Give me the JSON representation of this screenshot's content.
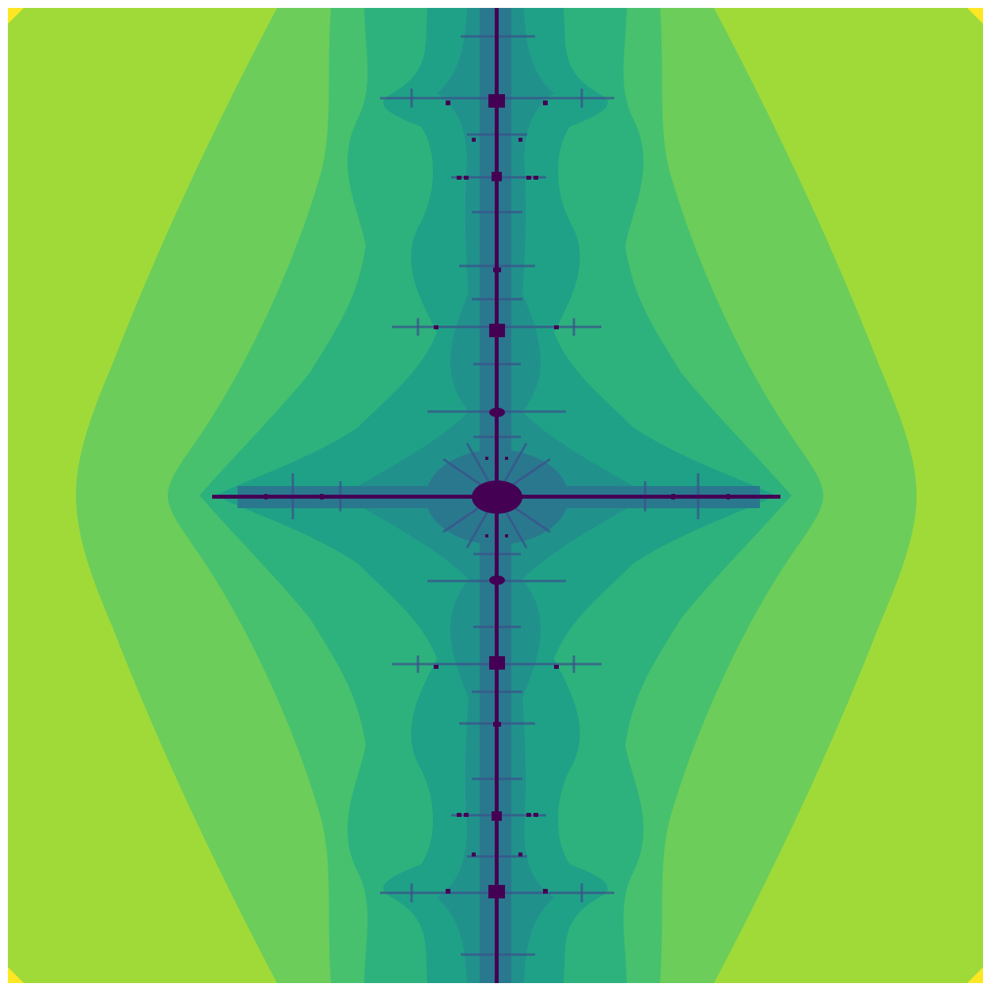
{
  "image": {
    "subject": "fractal-escape-time-render",
    "colormap": "viridis",
    "palette": {
      "outer": "#a0da39",
      "corner": "#fde725",
      "band_1": "#6ccd5a",
      "band_2": "#47c16e",
      "band_3": "#2db27d",
      "band_4": "#1fa187",
      "band_5": "#21918c",
      "band_6": "#2a788e",
      "band_7": "#3b528b",
      "interior": "#440154"
    }
  }
}
